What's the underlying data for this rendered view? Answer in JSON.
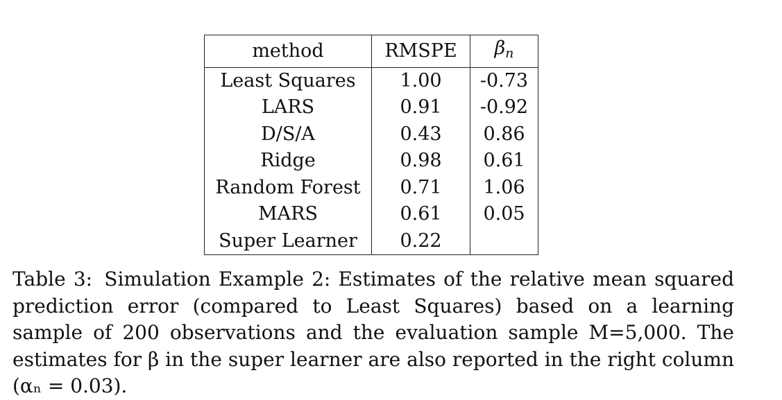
{
  "table": {
    "headers": {
      "method": "method",
      "rmspe": "RMSPE",
      "beta_symbol": "β",
      "beta_subscript": "n"
    },
    "rows": [
      {
        "method": "Least Squares",
        "rmspe": "1.00",
        "beta": "-0.73"
      },
      {
        "method": "LARS",
        "rmspe": "0.91",
        "beta": "-0.92"
      },
      {
        "method": "D/S/A",
        "rmspe": "0.43",
        "beta": "0.86"
      },
      {
        "method": "Ridge",
        "rmspe": "0.98",
        "beta": "0.61"
      },
      {
        "method": "Random Forest",
        "rmspe": "0.71",
        "beta": "1.06"
      },
      {
        "method": "MARS",
        "rmspe": "0.61",
        "beta": "0.05"
      },
      {
        "method": "Super Learner",
        "rmspe": "0.22",
        "beta": ""
      }
    ]
  },
  "caption": {
    "label": "Table 3:",
    "text": "Simulation Example 2: Estimates of the relative mean squared prediction error (compared to Least Squares) based on a learning sample of 200 observations and the evaluation sample M=5,000. The estimates for β in the super learner are also reported in the right column (αₙ = 0.03)."
  }
}
